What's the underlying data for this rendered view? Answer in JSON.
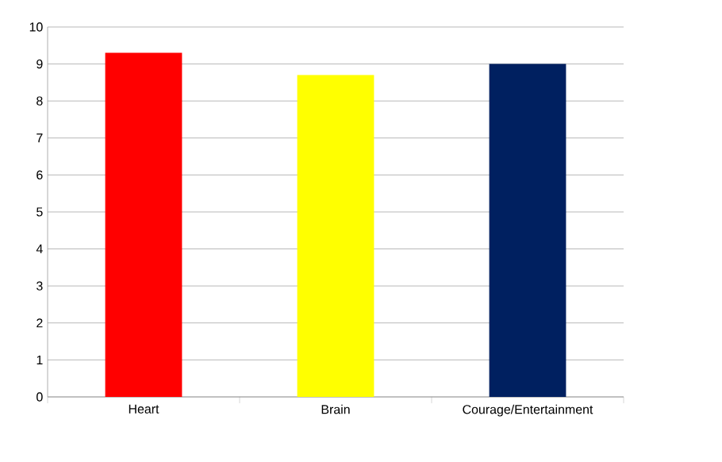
{
  "chart_data": {
    "type": "bar",
    "categories": [
      "Heart",
      "Brain",
      "Courage/Entertainment"
    ],
    "values": [
      9.3,
      8.7,
      9.0
    ],
    "colors": [
      "#ff0000",
      "#ffff00",
      "#002060"
    ],
    "ylim": [
      0,
      10
    ],
    "yticks": [
      0,
      1,
      2,
      3,
      4,
      5,
      6,
      7,
      8,
      9,
      10
    ],
    "grid": "y"
  }
}
